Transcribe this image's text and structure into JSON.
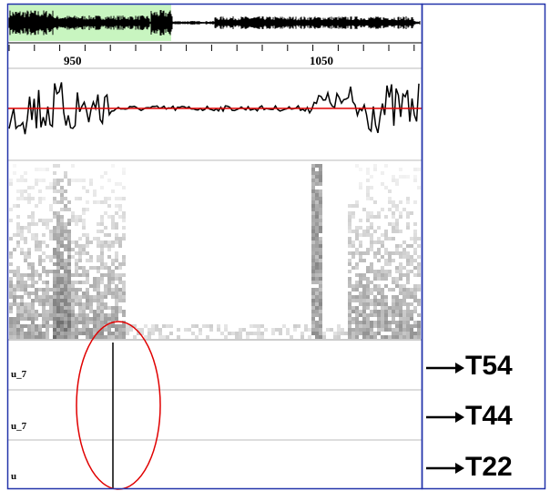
{
  "ruler": {
    "labels": [
      "950",
      "1050"
    ]
  },
  "tiers": [
    {
      "label": "u_7",
      "name": "T54"
    },
    {
      "label": "u_7",
      "name": "T44"
    },
    {
      "label": "u",
      "name": "T22"
    }
  ]
}
